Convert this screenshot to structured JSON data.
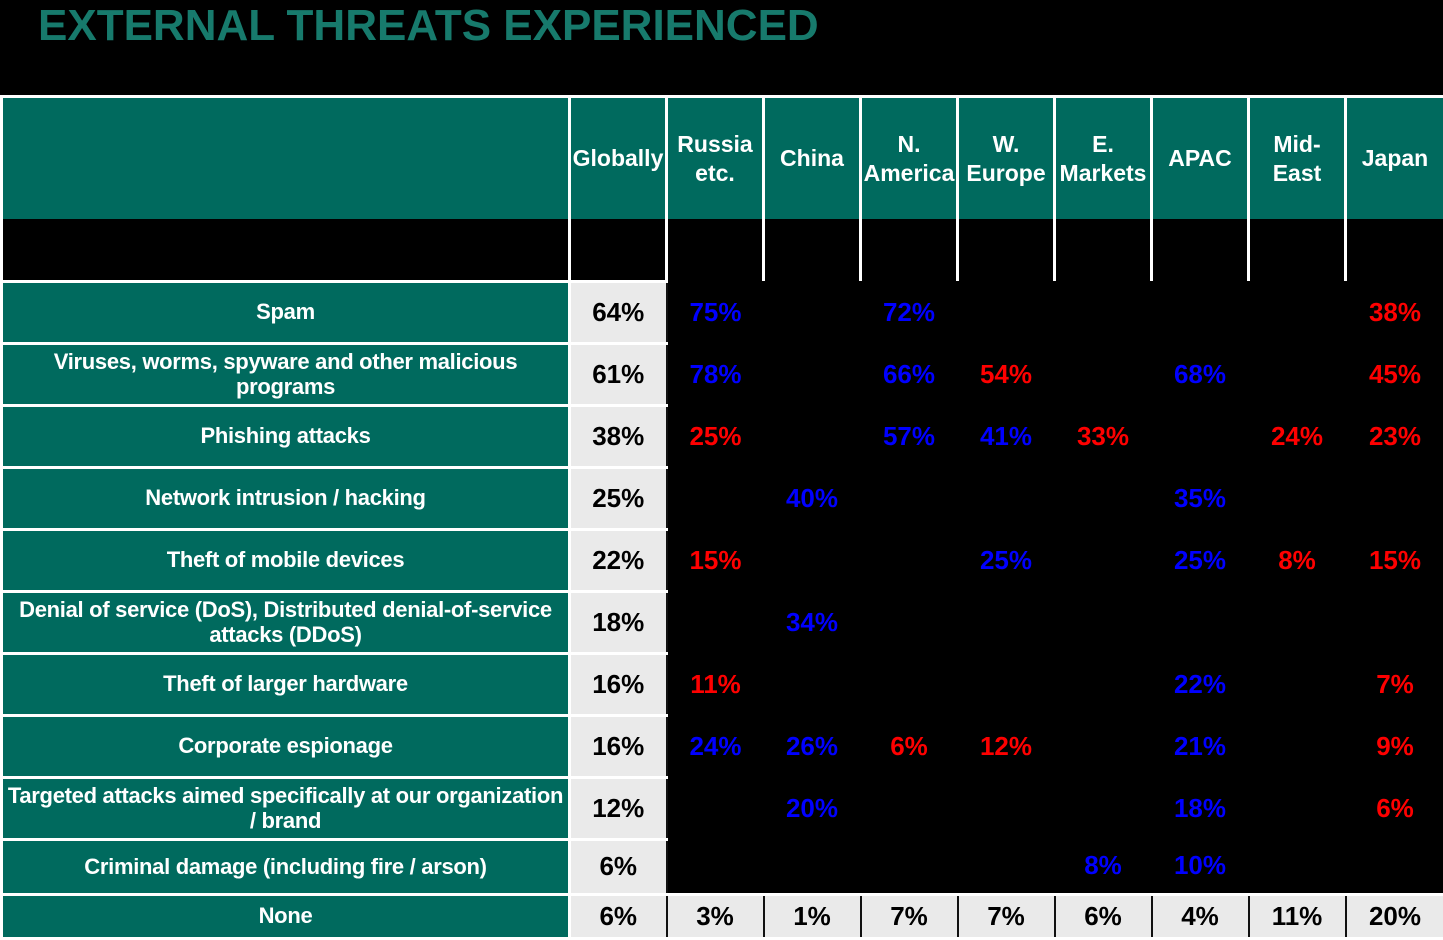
{
  "title": "EXTERNAL THREATS EXPERIENCED",
  "colors": {
    "background": "#000000",
    "title_teal": "#177A6C",
    "header_teal": "#006A5E",
    "cell_gray": "#EAEAEA",
    "higher_than_global_blue": "#0000FF",
    "lower_than_global_red": "#FE0000",
    "grid_white": "#FFFFFF"
  },
  "chart_data": {
    "type": "table",
    "title": "EXTERNAL THREATS EXPERIENCED",
    "columns": [
      "Globally",
      "Russia etc.",
      "China",
      "N. America",
      "W. Europe",
      "E. Markets",
      "APAC",
      "Mid-East",
      "Japan"
    ],
    "value_color_legend": "blue = notably higher than global, red = notably lower than global, black = neutral",
    "rows": [
      {
        "label": "Spam",
        "values": [
          "64%",
          "75%",
          "",
          "72%",
          "",
          "",
          "",
          "",
          "38%"
        ],
        "colors": [
          "black",
          "blue",
          "",
          "blue",
          "",
          "",
          "",
          "",
          "red"
        ],
        "style": "dark"
      },
      {
        "label": "Viruses, worms, spyware and other malicious programs",
        "values": [
          "61%",
          "78%",
          "",
          "66%",
          "54%",
          "",
          "68%",
          "",
          "45%"
        ],
        "colors": [
          "black",
          "blue",
          "",
          "blue",
          "red",
          "",
          "blue",
          "",
          "red"
        ],
        "style": "dark"
      },
      {
        "label": "Phishing attacks",
        "values": [
          "38%",
          "25%",
          "",
          "57%",
          "41%",
          "33%",
          "",
          "24%",
          "23%"
        ],
        "colors": [
          "black",
          "red",
          "",
          "blue",
          "blue",
          "red",
          "",
          "red",
          "red"
        ],
        "style": "dark"
      },
      {
        "label": "Network intrusion / hacking",
        "values": [
          "25%",
          "",
          "40%",
          "",
          "",
          "",
          "35%",
          "",
          ""
        ],
        "colors": [
          "black",
          "",
          "blue",
          "",
          "",
          "",
          "blue",
          "",
          ""
        ],
        "style": "dark"
      },
      {
        "label": "Theft of mobile devices",
        "values": [
          "22%",
          "15%",
          "",
          "",
          "25%",
          "",
          "25%",
          "8%",
          "15%"
        ],
        "colors": [
          "black",
          "red",
          "",
          "",
          "blue",
          "",
          "blue",
          "red",
          "red"
        ],
        "style": "dark"
      },
      {
        "label": "Denial of service (DoS), Distributed denial-of-service attacks (DDoS)",
        "values": [
          "18%",
          "",
          "34%",
          "",
          "",
          "",
          "",
          "",
          ""
        ],
        "colors": [
          "black",
          "",
          "blue",
          "",
          "",
          "",
          "",
          "",
          ""
        ],
        "style": "dark"
      },
      {
        "label": "Theft of larger hardware",
        "values": [
          "16%",
          "11%",
          "",
          "",
          "",
          "",
          "22%",
          "",
          "7%"
        ],
        "colors": [
          "black",
          "red",
          "",
          "",
          "",
          "",
          "blue",
          "",
          "red"
        ],
        "style": "dark"
      },
      {
        "label": "Corporate espionage",
        "values": [
          "16%",
          "24%",
          "26%",
          "6%",
          "12%",
          "",
          "21%",
          "",
          "9%"
        ],
        "colors": [
          "black",
          "blue",
          "blue",
          "red",
          "red",
          "",
          "blue",
          "",
          "red"
        ],
        "style": "dark"
      },
      {
        "label": "Targeted attacks aimed specifically at our organization / brand",
        "values": [
          "12%",
          "",
          "20%",
          "",
          "",
          "",
          "18%",
          "",
          "6%"
        ],
        "colors": [
          "black",
          "",
          "blue",
          "",
          "",
          "",
          "blue",
          "",
          "red"
        ],
        "style": "dark"
      },
      {
        "label": "Criminal damage (including fire / arson)",
        "values": [
          "6%",
          "",
          "",
          "",
          "",
          "8%",
          "10%",
          "",
          ""
        ],
        "colors": [
          "black",
          "",
          "",
          "",
          "",
          "blue",
          "blue",
          "",
          ""
        ],
        "style": "dark"
      },
      {
        "label": "None",
        "values": [
          "6%",
          "3%",
          "1%",
          "7%",
          "7%",
          "6%",
          "4%",
          "11%",
          "20%"
        ],
        "colors": [
          "black",
          "red",
          "red",
          "black",
          "black",
          "black",
          "red",
          "red",
          "blue"
        ],
        "style": "light"
      }
    ]
  }
}
